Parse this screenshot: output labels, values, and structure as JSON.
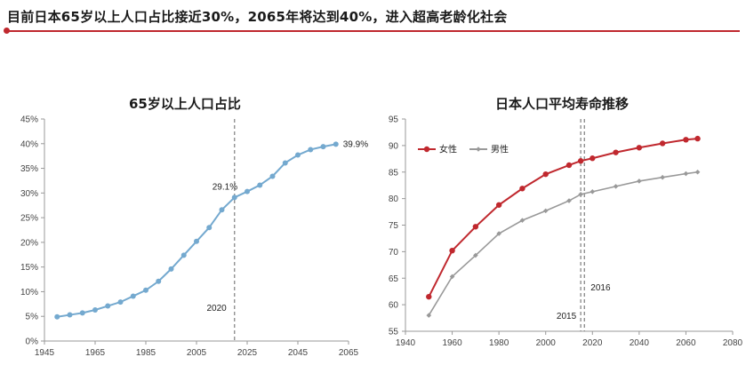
{
  "header": {
    "title": "目前日本65岁以上人口占比接近30%，2065年将达到40%，进入超高老龄化社会"
  },
  "colors": {
    "accent": "#c0282e",
    "left_series": "#74a9cf",
    "female": "#c0282e",
    "male": "#999999"
  },
  "chart_data": [
    {
      "type": "line",
      "title": "65岁以上人口占比",
      "xlabel": "",
      "ylabel": "",
      "xlim": [
        1945,
        2065
      ],
      "ylim": [
        0,
        45
      ],
      "x_ticks": [
        "1945",
        "1965",
        "1985",
        "2005",
        "2025",
        "2045",
        "2065"
      ],
      "y_ticks": [
        "0%",
        "5%",
        "10%",
        "15%",
        "20%",
        "25%",
        "30%",
        "35%",
        "40%",
        "45%"
      ],
      "grid": false,
      "legend": "none",
      "series": [
        {
          "x": [
            1950,
            1955,
            1960,
            1965,
            1970,
            1975,
            1980,
            1985,
            1990,
            1995,
            2000,
            2005,
            2010,
            2015,
            2020,
            2025,
            2030,
            2035,
            2040,
            2045,
            2050,
            2055,
            2060
          ],
          "values": [
            4.9,
            5.3,
            5.7,
            6.3,
            7.1,
            7.9,
            9.1,
            10.3,
            12.1,
            14.6,
            17.4,
            20.2,
            23.0,
            26.6,
            29.1,
            30.3,
            31.6,
            33.4,
            36.1,
            37.7,
            38.8,
            39.4,
            39.9
          ]
        }
      ],
      "reference_line": {
        "x": 2020,
        "label": "2020"
      },
      "annotations": [
        {
          "x": 2020,
          "y": 29.1,
          "text": "29.1%"
        },
        {
          "x": 2060,
          "y": 39.9,
          "text": "39.9%"
        }
      ]
    },
    {
      "type": "line",
      "title": "日本人口平均寿命推移",
      "xlabel": "",
      "ylabel": "",
      "xlim": [
        1940,
        2080
      ],
      "ylim": [
        55,
        95
      ],
      "x_ticks": [
        "1940",
        "1960",
        "1980",
        "2000",
        "2020",
        "2040",
        "2060",
        "2080"
      ],
      "y_ticks": [
        "55",
        "60",
        "65",
        "70",
        "75",
        "80",
        "85",
        "90",
        "95"
      ],
      "grid": false,
      "legend": "top-left",
      "series": [
        {
          "name": "女性",
          "x": [
            1950,
            1960,
            1970,
            1980,
            1990,
            2000,
            2010,
            2015,
            2020,
            2030,
            2040,
            2050,
            2060,
            2065
          ],
          "values": [
            61.5,
            70.2,
            74.7,
            78.8,
            81.9,
            84.6,
            86.3,
            87.1,
            87.6,
            88.7,
            89.6,
            90.4,
            91.1,
            91.3
          ]
        },
        {
          "name": "男性",
          "x": [
            1950,
            1960,
            1970,
            1980,
            1990,
            2000,
            2010,
            2015,
            2020,
            2030,
            2040,
            2050,
            2060,
            2065
          ],
          "values": [
            58.0,
            65.3,
            69.3,
            73.4,
            75.9,
            77.7,
            79.6,
            80.8,
            81.3,
            82.3,
            83.3,
            84.0,
            84.7,
            85.0
          ]
        }
      ],
      "reference_lines": [
        {
          "x": 2015,
          "label": "2015"
        },
        {
          "x": 2016,
          "label": "2016"
        }
      ]
    }
  ]
}
